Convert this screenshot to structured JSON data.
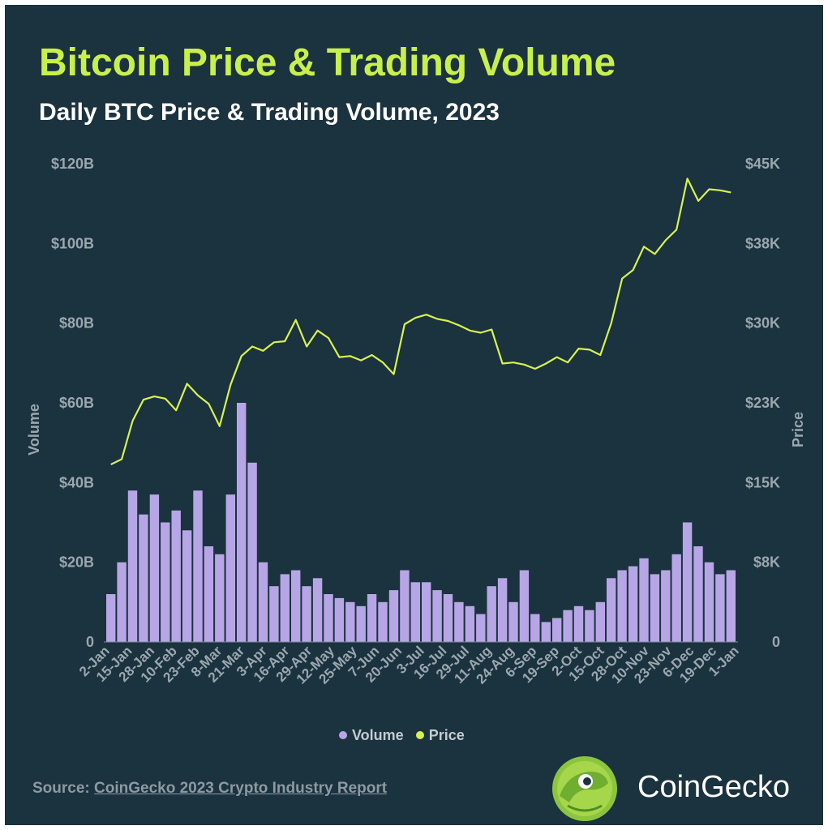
{
  "title": "Bitcoin Price & Trading Volume",
  "subtitle": "Daily BTC Price & Trading Volume, 2023",
  "legend": {
    "volume_label": "Volume",
    "price_label": "Price"
  },
  "source": {
    "prefix": "Source:",
    "link_text": "CoinGecko 2023 Crypto Industry Report"
  },
  "brand": "CoinGecko",
  "colors": {
    "background": "#1b323f",
    "title": "#c8f04a",
    "volume": "#b7a6e6",
    "price": "#d7f24f",
    "axis_text": "#9aa7ae"
  },
  "chart_data": {
    "type": "bar+line",
    "title": "Daily BTC Price & Trading Volume, 2023",
    "ylabel_left": "Volume",
    "ylabel_right": "Price",
    "y_left_ticks": [
      "0",
      "$20B",
      "$40B",
      "$60B",
      "$80B",
      "$100B",
      "$120B"
    ],
    "y_right_ticks": [
      "0",
      "$8K",
      "$15K",
      "$23K",
      "$30K",
      "$38K",
      "$45K"
    ],
    "ylim_left": [
      0,
      120
    ],
    "ylim_right": [
      0,
      45
    ],
    "x_tick_labels": [
      "2-Jan",
      "15-Jan",
      "28-Jan",
      "10-Feb",
      "23-Feb",
      "8-Mar",
      "21-Mar",
      "3-Apr",
      "16-Apr",
      "29-Apr",
      "12-May",
      "25-May",
      "7-Jun",
      "20-Jun",
      "3-Jul",
      "16-Jul",
      "29-Jul",
      "11-Aug",
      "24-Aug",
      "6-Sep",
      "19-Sep",
      "2-Oct",
      "15-Oct",
      "28-Oct",
      "10-Nov",
      "23-Nov",
      "6-Dec",
      "19-Dec",
      "1-Jan"
    ],
    "series": [
      {
        "name": "Volume",
        "kind": "bar",
        "unit": "$B",
        "x": [
          "2-Jan",
          "9-Jan",
          "15-Jan",
          "22-Jan",
          "28-Jan",
          "4-Feb",
          "10-Feb",
          "17-Feb",
          "23-Feb",
          "2-Mar",
          "8-Mar",
          "13-Mar",
          "17-Mar",
          "21-Mar",
          "28-Mar",
          "3-Apr",
          "10-Apr",
          "16-Apr",
          "23-Apr",
          "29-Apr",
          "6-May",
          "12-May",
          "19-May",
          "25-May",
          "1-Jun",
          "7-Jun",
          "14-Jun",
          "20-Jun",
          "27-Jun",
          "3-Jul",
          "10-Jul",
          "16-Jul",
          "23-Jul",
          "29-Jul",
          "5-Aug",
          "11-Aug",
          "17-Aug",
          "24-Aug",
          "31-Aug",
          "6-Sep",
          "13-Sep",
          "19-Sep",
          "26-Sep",
          "2-Oct",
          "9-Oct",
          "15-Oct",
          "22-Oct",
          "28-Oct",
          "4-Nov",
          "10-Nov",
          "17-Nov",
          "23-Nov",
          "30-Nov",
          "6-Dec",
          "13-Dec",
          "19-Dec",
          "26-Dec",
          "1-Jan"
        ],
        "values": [
          12,
          20,
          38,
          32,
          37,
          30,
          33,
          28,
          38,
          24,
          22,
          37,
          60,
          45,
          20,
          14,
          17,
          18,
          14,
          16,
          12,
          11,
          10,
          9,
          12,
          10,
          13,
          18,
          15,
          15,
          13,
          12,
          10,
          9,
          7,
          14,
          16,
          10,
          18,
          7,
          5,
          6,
          8,
          9,
          8,
          10,
          16,
          18,
          19,
          21,
          17,
          18,
          22,
          30,
          24,
          20,
          17,
          18
        ]
      },
      {
        "name": "Price",
        "kind": "line",
        "unit": "$",
        "x": [
          "2-Jan",
          "9-Jan",
          "15-Jan",
          "22-Jan",
          "28-Jan",
          "4-Feb",
          "10-Feb",
          "17-Feb",
          "23-Feb",
          "2-Mar",
          "8-Mar",
          "13-Mar",
          "17-Mar",
          "21-Mar",
          "28-Mar",
          "3-Apr",
          "10-Apr",
          "16-Apr",
          "23-Apr",
          "29-Apr",
          "6-May",
          "12-May",
          "19-May",
          "25-May",
          "1-Jun",
          "7-Jun",
          "14-Jun",
          "20-Jun",
          "27-Jun",
          "3-Jul",
          "10-Jul",
          "16-Jul",
          "23-Jul",
          "29-Jul",
          "5-Aug",
          "11-Aug",
          "17-Aug",
          "24-Aug",
          "31-Aug",
          "6-Sep",
          "13-Sep",
          "19-Sep",
          "26-Sep",
          "2-Oct",
          "9-Oct",
          "15-Oct",
          "22-Oct",
          "28-Oct",
          "4-Nov",
          "10-Nov",
          "17-Nov",
          "23-Nov",
          "30-Nov",
          "6-Dec",
          "13-Dec",
          "19-Dec",
          "26-Dec",
          "1-Jan"
        ],
        "values": [
          16700,
          17200,
          20800,
          22800,
          23100,
          22900,
          21800,
          24300,
          23200,
          22400,
          20300,
          24200,
          26900,
          27800,
          27400,
          28200,
          28300,
          30300,
          27800,
          29300,
          28600,
          26800,
          26900,
          26500,
          27000,
          26300,
          25200,
          29900,
          30500,
          30800,
          30400,
          30200,
          29800,
          29300,
          29100,
          29400,
          26200,
          26300,
          26100,
          25700,
          26200,
          26800,
          26300,
          27600,
          27500,
          27000,
          30000,
          34200,
          35000,
          37200,
          36500,
          37800,
          38800,
          43600,
          41500,
          42600,
          42500,
          42300
        ]
      }
    ]
  }
}
